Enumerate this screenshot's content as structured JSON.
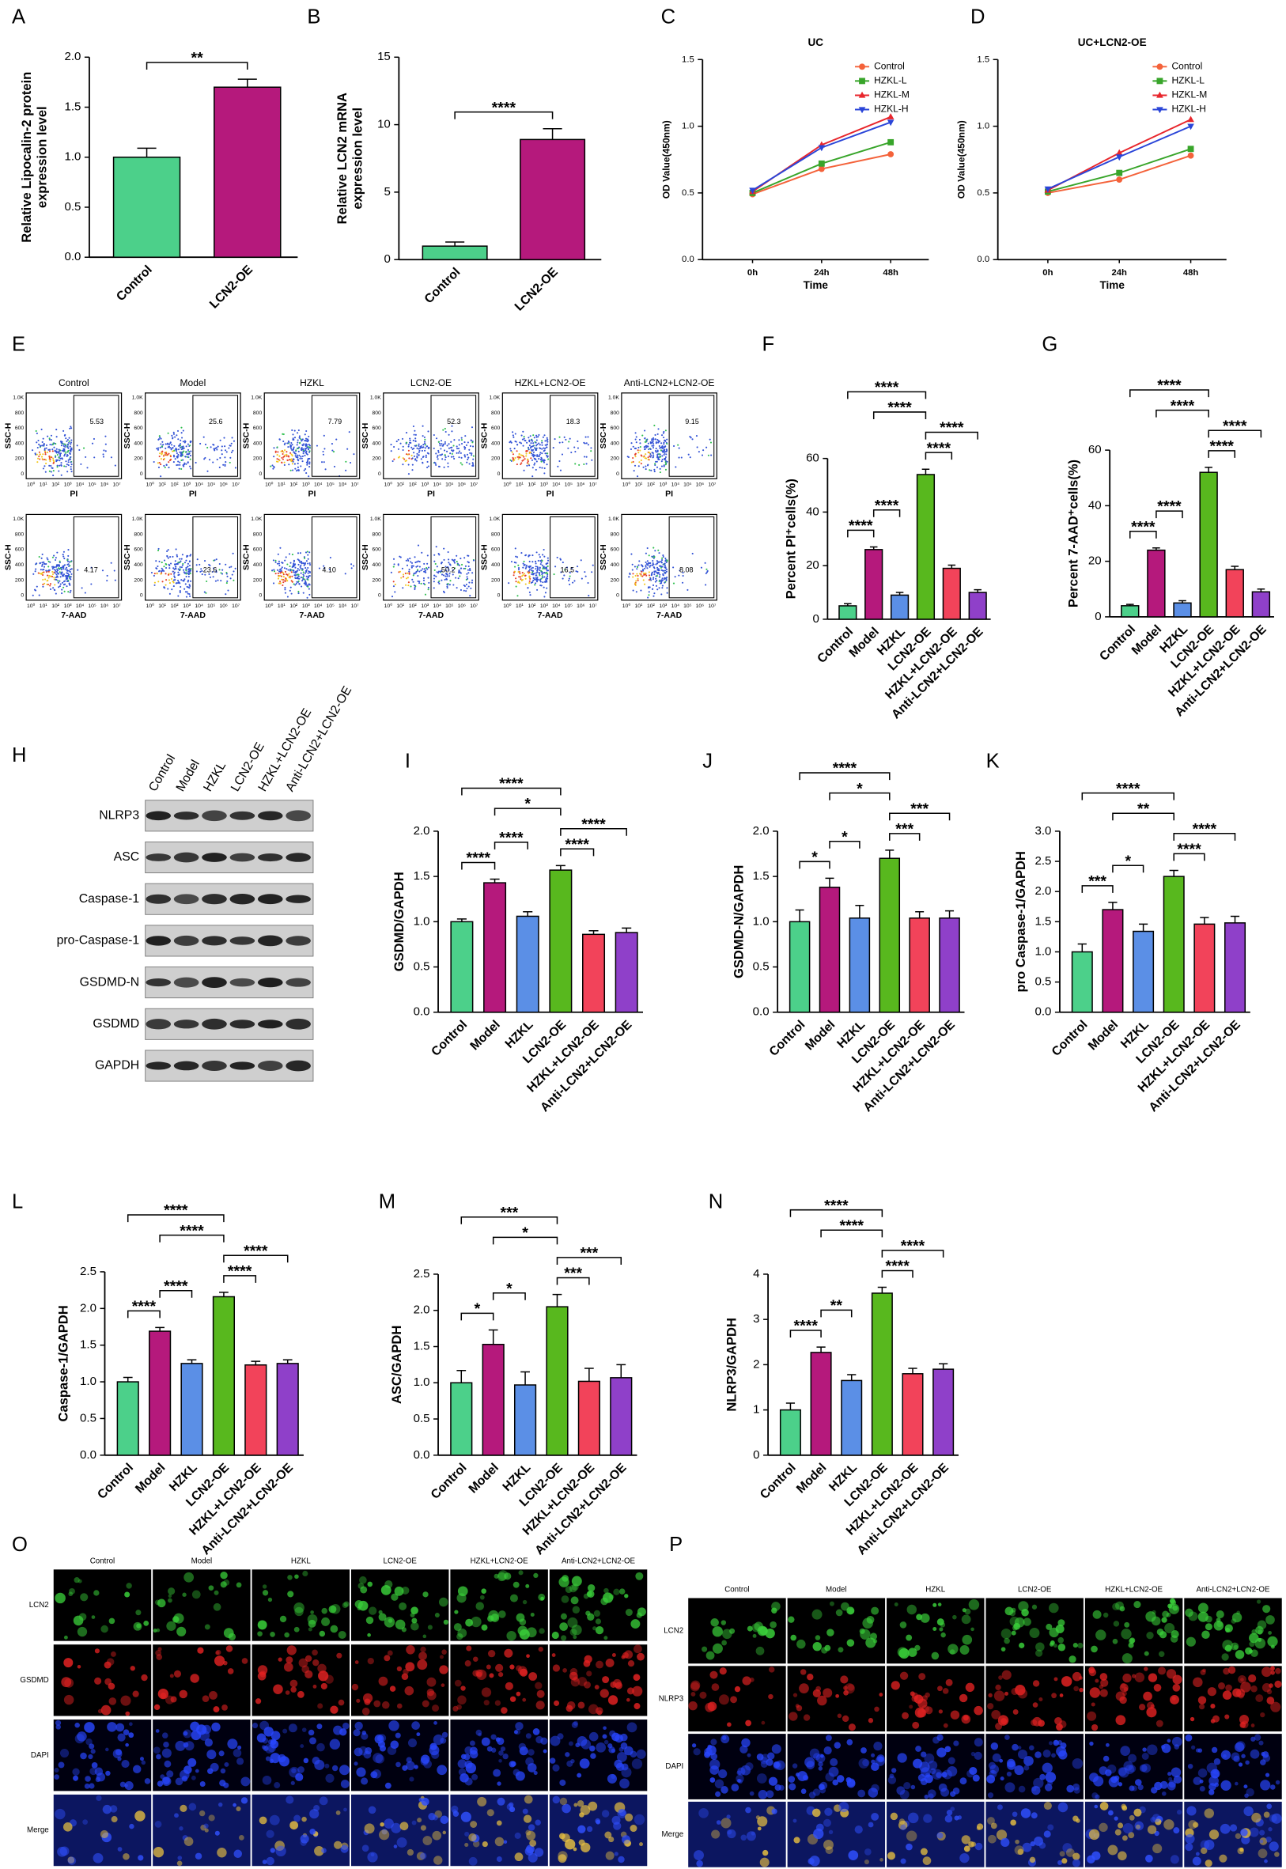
{
  "chart_data": [
    {
      "panel": "A",
      "type": "bar",
      "y_label": [
        "Relative Lipocalin-2 protein",
        "expression level"
      ],
      "categories": [
        "Control",
        "LCN2-OE"
      ],
      "values": [
        1.0,
        1.7
      ],
      "errors": [
        0.09,
        0.08
      ],
      "colors": [
        "#4cd08a",
        "#b5197c"
      ],
      "ylim": [
        0,
        2
      ],
      "yticks": [
        {
          "value": 0,
          "label": "0.0"
        },
        0.5,
        {
          "value": 1,
          "label": "1.0"
        },
        1.5,
        {
          "value": 2,
          "label": "2.0"
        }
      ],
      "significance": [
        {
          "from": "Control",
          "to": "LCN2-OE",
          "label": "**"
        }
      ]
    },
    {
      "panel": "B",
      "type": "bar",
      "y_label": [
        "Relative LCN2 mRNA",
        "expression level"
      ],
      "categories": [
        "Control",
        "LCN2-OE"
      ],
      "values": [
        1.0,
        8.9
      ],
      "errors": [
        0.3,
        0.8
      ],
      "colors": [
        "#4cd08a",
        "#b5197c"
      ],
      "ylim": [
        0,
        15
      ],
      "yticks": [
        0,
        5,
        10,
        15
      ],
      "significance": [
        {
          "from": "Control",
          "to": "LCN2-OE",
          "label": "****"
        }
      ]
    },
    {
      "panel": "C",
      "type": "line",
      "title": "UC",
      "x_label": "Time",
      "y_label": "OD Value(450nm)",
      "categories": [
        "0h",
        "24h",
        "48h"
      ],
      "ylim": [
        0,
        1.5
      ],
      "yticks": [
        {
          "value": 0,
          "label": "0.0"
        },
        0.5,
        {
          "value": 1,
          "label": "1.0"
        },
        1.5
      ],
      "legend": "upper right",
      "series": [
        {
          "name": "Control",
          "color": "#f4623a",
          "marker": "circle",
          "values": [
            0.49,
            0.68,
            0.79
          ]
        },
        {
          "name": "HZKL-L",
          "color": "#38a52a",
          "marker": "square",
          "values": [
            0.5,
            0.72,
            0.88
          ]
        },
        {
          "name": "HZKL-M",
          "color": "#e8262c",
          "marker": "triangle",
          "values": [
            0.51,
            0.86,
            1.07
          ]
        },
        {
          "name": "HZKL-H",
          "color": "#2a45d8",
          "marker": "triangle-down",
          "values": [
            0.52,
            0.84,
            1.03
          ]
        }
      ]
    },
    {
      "panel": "D",
      "type": "line",
      "title": "UC+LCN2-OE",
      "x_label": "Time",
      "y_label": "OD Value(450nm)",
      "categories": [
        "0h",
        "24h",
        "48h"
      ],
      "ylim": [
        0,
        1.5
      ],
      "yticks": [
        {
          "value": 0,
          "label": "0.0"
        },
        0.5,
        {
          "value": 1,
          "label": "1.0"
        },
        1.5
      ],
      "legend": "upper right",
      "series": [
        {
          "name": "Control",
          "color": "#f4623a",
          "marker": "circle",
          "values": [
            0.5,
            0.6,
            0.78
          ]
        },
        {
          "name": "HZKL-L",
          "color": "#38a52a",
          "marker": "square",
          "values": [
            0.51,
            0.65,
            0.83
          ]
        },
        {
          "name": "HZKL-M",
          "color": "#e8262c",
          "marker": "triangle",
          "values": [
            0.52,
            0.8,
            1.05
          ]
        },
        {
          "name": "HZKL-H",
          "color": "#2a45d8",
          "marker": "triangle-down",
          "values": [
            0.53,
            0.77,
            1.0
          ]
        }
      ]
    },
    {
      "panel": "F",
      "type": "bar",
      "y_label": "Percent PI⁺cells(%)",
      "categories": [
        "Control",
        "Model",
        "HZKL",
        "LCN2-OE",
        "HZKL+LCN2-OE",
        "Anti-LCN2+LCN2-OE"
      ],
      "values": [
        5,
        26,
        9,
        54,
        19,
        10
      ],
      "errors": [
        0.8,
        1,
        1,
        2,
        1.2,
        1
      ],
      "colors": [
        "#4cd08a",
        "#b5197c",
        "#5b8fe6",
        "#58b81e",
        "#f2435a",
        "#8f40c9"
      ],
      "ylim": [
        0,
        60
      ],
      "yticks": [
        0,
        20,
        40,
        60
      ],
      "significance": [
        {
          "from": "Control",
          "to": "Model",
          "label": "****"
        },
        {
          "from": "Model",
          "to": "HZKL",
          "label": "****"
        },
        {
          "from": "LCN2-OE",
          "to": "HZKL+LCN2-OE",
          "label": "****"
        },
        {
          "from": "LCN2-OE",
          "to": "Anti-LCN2+LCN2-OE",
          "label": "****"
        },
        {
          "from": "Model",
          "to": "LCN2-OE",
          "label": "****"
        },
        {
          "from": "Control",
          "to": "LCN2-OE",
          "label": "****"
        }
      ]
    },
    {
      "panel": "G",
      "type": "bar",
      "y_label": "Percent 7-AAD⁺cells(%)",
      "categories": [
        "Control",
        "Model",
        "HZKL",
        "LCN2-OE",
        "HZKL+LCN2-OE",
        "Anti-LCN2+LCN2-OE"
      ],
      "values": [
        4,
        24,
        5,
        52,
        17,
        9
      ],
      "errors": [
        0.5,
        0.8,
        0.8,
        1.8,
        1.2,
        1
      ],
      "colors": [
        "#4cd08a",
        "#b5197c",
        "#5b8fe6",
        "#58b81e",
        "#f2435a",
        "#8f40c9"
      ],
      "ylim": [
        0,
        60
      ],
      "yticks": [
        0,
        20,
        40,
        60
      ],
      "significance": [
        {
          "from": "Control",
          "to": "Model",
          "label": "****"
        },
        {
          "from": "Model",
          "to": "HZKL",
          "label": "****"
        },
        {
          "from": "LCN2-OE",
          "to": "HZKL+LCN2-OE",
          "label": "****"
        },
        {
          "from": "LCN2-OE",
          "to": "Anti-LCN2+LCN2-OE",
          "label": "****"
        },
        {
          "from": "Model",
          "to": "LCN2-OE",
          "label": "****"
        },
        {
          "from": "Control",
          "to": "LCN2-OE",
          "label": "****"
        }
      ]
    },
    {
      "panel": "I",
      "type": "bar",
      "y_label": "GSDMD/GAPDH",
      "categories": [
        "Control",
        "Model",
        "HZKL",
        "LCN2-OE",
        "HZKL+LCN2-OE",
        "Anti-LCN2+LCN2-OE"
      ],
      "values": [
        1.0,
        1.43,
        1.06,
        1.57,
        0.86,
        0.88
      ],
      "errors": [
        0.03,
        0.04,
        0.05,
        0.05,
        0.04,
        0.05
      ],
      "colors": [
        "#4cd08a",
        "#b5197c",
        "#5b8fe6",
        "#58b81e",
        "#f2435a",
        "#8f40c9"
      ],
      "ylim": [
        0,
        2
      ],
      "yticks": [
        {
          "value": 0,
          "label": "0.0"
        },
        0.5,
        {
          "value": 1,
          "label": "1.0"
        },
        1.5,
        {
          "value": 2,
          "label": "2.0"
        }
      ],
      "significance": [
        {
          "from": "Control",
          "to": "Model",
          "label": "****"
        },
        {
          "from": "Model",
          "to": "HZKL",
          "label": "****"
        },
        {
          "from": "LCN2-OE",
          "to": "HZKL+LCN2-OE",
          "label": "****"
        },
        {
          "from": "LCN2-OE",
          "to": "Anti-LCN2+LCN2-OE",
          "label": "****"
        },
        {
          "from": "Model",
          "to": "LCN2-OE",
          "label": "*"
        },
        {
          "from": "Control",
          "to": "LCN2-OE",
          "label": "****"
        }
      ]
    },
    {
      "panel": "J",
      "type": "bar",
      "y_label": "GSDMD-N/GAPDH",
      "categories": [
        "Control",
        "Model",
        "HZKL",
        "LCN2-OE",
        "HZKL+LCN2-OE",
        "Anti-LCN2+LCN2-OE"
      ],
      "values": [
        1.0,
        1.38,
        1.04,
        1.7,
        1.04,
        1.04
      ],
      "errors": [
        0.13,
        0.1,
        0.14,
        0.09,
        0.07,
        0.08
      ],
      "colors": [
        "#4cd08a",
        "#b5197c",
        "#5b8fe6",
        "#58b81e",
        "#f2435a",
        "#8f40c9"
      ],
      "ylim": [
        0,
        2
      ],
      "yticks": [
        {
          "value": 0,
          "label": "0.0"
        },
        0.5,
        {
          "value": 1,
          "label": "1.0"
        },
        1.5,
        {
          "value": 2,
          "label": "2.0"
        }
      ],
      "significance": [
        {
          "from": "Control",
          "to": "Model",
          "label": "*"
        },
        {
          "from": "Model",
          "to": "HZKL",
          "label": "*"
        },
        {
          "from": "LCN2-OE",
          "to": "HZKL+LCN2-OE",
          "label": "***"
        },
        {
          "from": "LCN2-OE",
          "to": "Anti-LCN2+LCN2-OE",
          "label": "***"
        },
        {
          "from": "Model",
          "to": "LCN2-OE",
          "label": "*"
        },
        {
          "from": "Control",
          "to": "LCN2-OE",
          "label": "****"
        }
      ]
    },
    {
      "panel": "K",
      "type": "bar",
      "y_label": "pro Caspase-1/GAPDH",
      "categories": [
        "Control",
        "Model",
        "HZKL",
        "LCN2-OE",
        "HZKL+LCN2-OE",
        "Anti-LCN2+LCN2-OE"
      ],
      "values": [
        1.0,
        1.7,
        1.34,
        2.25,
        1.46,
        1.48
      ],
      "errors": [
        0.13,
        0.12,
        0.12,
        0.1,
        0.11,
        0.11
      ],
      "colors": [
        "#4cd08a",
        "#b5197c",
        "#5b8fe6",
        "#58b81e",
        "#f2435a",
        "#8f40c9"
      ],
      "ylim": [
        0,
        3
      ],
      "yticks": [
        {
          "value": 0,
          "label": "0.0"
        },
        0.5,
        {
          "value": 1,
          "label": "1.0"
        },
        1.5,
        {
          "value": 2,
          "label": "2.0"
        },
        2.5,
        {
          "value": 3,
          "label": "3.0"
        }
      ],
      "significance": [
        {
          "from": "Control",
          "to": "Model",
          "label": "***"
        },
        {
          "from": "Model",
          "to": "HZKL",
          "label": "*"
        },
        {
          "from": "LCN2-OE",
          "to": "HZKL+LCN2-OE",
          "label": "****"
        },
        {
          "from": "LCN2-OE",
          "to": "Anti-LCN2+LCN2-OE",
          "label": "****"
        },
        {
          "from": "Model",
          "to": "LCN2-OE",
          "label": "**"
        },
        {
          "from": "Control",
          "to": "LCN2-OE",
          "label": "****"
        }
      ]
    },
    {
      "panel": "L",
      "type": "bar",
      "y_label": "Caspase-1/GAPDH",
      "categories": [
        "Control",
        "Model",
        "HZKL",
        "LCN2-OE",
        "HZKL+LCN2-OE",
        "Anti-LCN2+LCN2-OE"
      ],
      "values": [
        1.0,
        1.69,
        1.25,
        2.16,
        1.23,
        1.25
      ],
      "errors": [
        0.06,
        0.05,
        0.05,
        0.06,
        0.05,
        0.05
      ],
      "colors": [
        "#4cd08a",
        "#b5197c",
        "#5b8fe6",
        "#58b81e",
        "#f2435a",
        "#8f40c9"
      ],
      "ylim": [
        0,
        2.5
      ],
      "yticks": [
        {
          "value": 0,
          "label": "0.0"
        },
        0.5,
        {
          "value": 1,
          "label": "1.0"
        },
        1.5,
        {
          "value": 2,
          "label": "2.0"
        },
        2.5
      ],
      "significance": [
        {
          "from": "Control",
          "to": "Model",
          "label": "****"
        },
        {
          "from": "Model",
          "to": "HZKL",
          "label": "****"
        },
        {
          "from": "LCN2-OE",
          "to": "HZKL+LCN2-OE",
          "label": "****"
        },
        {
          "from": "LCN2-OE",
          "to": "Anti-LCN2+LCN2-OE",
          "label": "****"
        },
        {
          "from": "Model",
          "to": "LCN2-OE",
          "label": "****"
        },
        {
          "from": "Control",
          "to": "LCN2-OE",
          "label": "****"
        }
      ]
    },
    {
      "panel": "M",
      "type": "bar",
      "y_label": "ASC/GAPDH",
      "categories": [
        "Control",
        "Model",
        "HZKL",
        "LCN2-OE",
        "HZKL+LCN2-OE",
        "Anti-LCN2+LCN2-OE"
      ],
      "values": [
        1.0,
        1.53,
        0.97,
        2.05,
        1.02,
        1.07
      ],
      "errors": [
        0.17,
        0.2,
        0.18,
        0.17,
        0.18,
        0.18
      ],
      "colors": [
        "#4cd08a",
        "#b5197c",
        "#5b8fe6",
        "#58b81e",
        "#f2435a",
        "#8f40c9"
      ],
      "ylim": [
        0,
        2.5
      ],
      "yticks": [
        {
          "value": 0,
          "label": "0.0"
        },
        0.5,
        {
          "value": 1,
          "label": "1.0"
        },
        1.5,
        {
          "value": 2,
          "label": "2.0"
        },
        2.5
      ],
      "significance": [
        {
          "from": "Control",
          "to": "Model",
          "label": "*"
        },
        {
          "from": "Model",
          "to": "HZKL",
          "label": "*"
        },
        {
          "from": "LCN2-OE",
          "to": "HZKL+LCN2-OE",
          "label": "***"
        },
        {
          "from": "LCN2-OE",
          "to": "Anti-LCN2+LCN2-OE",
          "label": "***"
        },
        {
          "from": "Model",
          "to": "LCN2-OE",
          "label": "*"
        },
        {
          "from": "Control",
          "to": "LCN2-OE",
          "label": "***"
        }
      ]
    },
    {
      "panel": "N",
      "type": "bar",
      "y_label": "NLRP3/GAPDH",
      "categories": [
        "Control",
        "Model",
        "HZKL",
        "LCN2-OE",
        "HZKL+LCN2-OE",
        "Anti-LCN2+LCN2-OE"
      ],
      "values": [
        1.0,
        2.27,
        1.65,
        3.58,
        1.8,
        1.9
      ],
      "errors": [
        0.15,
        0.12,
        0.13,
        0.13,
        0.12,
        0.12
      ],
      "colors": [
        "#4cd08a",
        "#b5197c",
        "#5b8fe6",
        "#58b81e",
        "#f2435a",
        "#8f40c9"
      ],
      "ylim": [
        0,
        4
      ],
      "yticks": [
        0,
        1,
        2,
        3,
        4
      ],
      "significance": [
        {
          "from": "Control",
          "to": "Model",
          "label": "****"
        },
        {
          "from": "Model",
          "to": "HZKL",
          "label": "**"
        },
        {
          "from": "LCN2-OE",
          "to": "HZKL+LCN2-OE",
          "label": "****"
        },
        {
          "from": "LCN2-OE",
          "to": "Anti-LCN2+LCN2-OE",
          "label": "****"
        },
        {
          "from": "Model",
          "to": "LCN2-OE",
          "label": "****"
        },
        {
          "from": "Control",
          "to": "LCN2-OE",
          "label": "****"
        }
      ]
    }
  ],
  "flow": {
    "label": "E",
    "columns": [
      "Control",
      "Model",
      "HZKL",
      "LCN2-OE",
      "HZKL+LCN2-OE",
      "Anti-LCN2+LCN2-OE"
    ],
    "y_label": "SSC-H",
    "y_ticks": [
      "1.0K",
      "800",
      "600",
      "400",
      "200",
      "0"
    ],
    "x_ticks": [
      "10⁰",
      "10¹",
      "10²",
      "10³",
      "10⁴",
      "10⁵",
      "10⁶",
      "10⁷"
    ],
    "rows": [
      {
        "x_label": "PI",
        "gates": [
          "5.53",
          "25.6",
          "7.79",
          "52.3",
          "18.3",
          "9.15"
        ]
      },
      {
        "x_label": "7-AAD",
        "gates": [
          "4.17",
          "23.6",
          "4.10",
          "50.2",
          "16.5",
          "8.08"
        ]
      }
    ]
  },
  "blot": {
    "label": "H",
    "columns": [
      "Control",
      "Model",
      "HZKL",
      "LCN2-OE",
      "HZKL+LCN2-OE",
      "Anti-LCN2+LCN2-OE"
    ],
    "rows": [
      "NLRP3",
      "ASC",
      "Caspase-1",
      "pro-Caspase-1",
      "GSDMD-N",
      "GSDMD",
      "GAPDH"
    ]
  },
  "if_panels": [
    {
      "label": "O",
      "columns": [
        "Control",
        "Model",
        "HZKL",
        "LCN2-OE",
        "HZKL+LCN2-OE",
        "Anti-LCN2+LCN2-OE"
      ],
      "rows": [
        "LCN2",
        "GSDMD",
        "DAPI",
        "Merge"
      ]
    },
    {
      "label": "P",
      "columns": [
        "Control",
        "Model",
        "HZKL",
        "LCN2-OE",
        "HZKL+LCN2-OE",
        "Anti-LCN2+LCN2-OE"
      ],
      "rows": [
        "LCN2",
        "NLRP3",
        "DAPI",
        "Merge"
      ]
    }
  ]
}
